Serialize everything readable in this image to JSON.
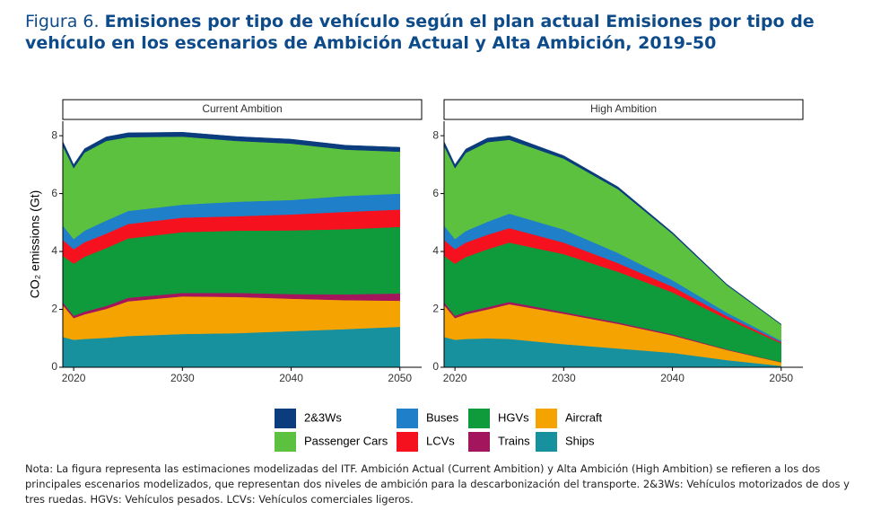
{
  "figure_label": "Figura 6.",
  "title": "Emisiones por tipo de vehículo según el plan actual Emisiones por tipo de vehículo en los escenarios de Ambición Actual y Alta Ambición, 2019-50",
  "note": "Nota: La figura representa las estimaciones modelizadas del ITF. Ambición Actual (Current Ambition) y Alta Ambición (High Ambition) se refieren a los dos principales escenarios modelizados, que representan dos niveles de ambición para la descarbonización del transporte. 2&3Ws: Vehículos motorizados de dos y tres ruedas. HGVs: Vehículos pesados. LCVs: Vehículos comerciales ligeros.",
  "chart_data": [
    {
      "type": "stacked_area",
      "title": "Current Ambition",
      "y_label": "CO₂ emissions (Gt)",
      "x": [
        2019,
        2020,
        2021,
        2023,
        2025,
        2030,
        2035,
        2040,
        2045,
        2050
      ],
      "xlim": [
        2019,
        2052
      ],
      "xticks": [
        2020,
        2030,
        2040,
        2050
      ],
      "ylim": [
        0,
        8.5
      ],
      "yticks": [
        0,
        2,
        4,
        6,
        8
      ],
      "series": [
        {
          "name": "2&3Ws",
          "color": "#0b3c7d",
          "values": [
            0.15,
            0.12,
            0.13,
            0.14,
            0.15,
            0.15,
            0.15,
            0.15,
            0.15,
            0.15
          ]
        },
        {
          "name": "Passenger Cars",
          "color": "#5cc13e",
          "values": [
            2.75,
            2.45,
            2.7,
            2.75,
            2.55,
            2.35,
            2.1,
            1.95,
            1.6,
            1.45
          ]
        },
        {
          "name": "Buses",
          "color": "#1f7fc8",
          "values": [
            0.5,
            0.35,
            0.4,
            0.45,
            0.45,
            0.45,
            0.5,
            0.5,
            0.55,
            0.55
          ]
        },
        {
          "name": "LCVs",
          "color": "#f5111d",
          "values": [
            0.55,
            0.5,
            0.5,
            0.5,
            0.5,
            0.5,
            0.5,
            0.55,
            0.6,
            0.6
          ]
        },
        {
          "name": "HGVs",
          "color": "#0f9a3c",
          "values": [
            1.6,
            1.8,
            1.9,
            2.0,
            2.05,
            2.1,
            2.15,
            2.2,
            2.25,
            2.3
          ]
        },
        {
          "name": "Trains",
          "color": "#a3155d",
          "values": [
            0.1,
            0.08,
            0.09,
            0.1,
            0.12,
            0.12,
            0.14,
            0.16,
            0.2,
            0.25
          ]
        },
        {
          "name": "Aircraft",
          "color": "#f5a300",
          "values": [
            1.1,
            0.75,
            0.85,
            1.0,
            1.2,
            1.3,
            1.25,
            1.12,
            1.0,
            0.9
          ]
        },
        {
          "name": "Ships",
          "color": "#17919e",
          "values": [
            1.05,
            0.95,
            0.98,
            1.02,
            1.08,
            1.15,
            1.18,
            1.25,
            1.32,
            1.4
          ]
        }
      ]
    },
    {
      "type": "stacked_area",
      "title": "High Ambition",
      "x": [
        2019,
        2020,
        2021,
        2023,
        2025,
        2030,
        2035,
        2040,
        2045,
        2050
      ],
      "xlim": [
        2019,
        2052
      ],
      "xticks": [
        2020,
        2030,
        2040,
        2050
      ],
      "ylim": [
        0,
        8.5
      ],
      "yticks": [
        0,
        2,
        4,
        6,
        8
      ],
      "series": [
        {
          "name": "2&3Ws",
          "color": "#0b3c7d",
          "values": [
            0.15,
            0.12,
            0.13,
            0.14,
            0.14,
            0.1,
            0.08,
            0.05,
            0.03,
            0.02
          ]
        },
        {
          "name": "Passenger Cars",
          "color": "#5cc13e",
          "values": [
            2.75,
            2.45,
            2.7,
            2.75,
            2.55,
            2.45,
            2.2,
            1.6,
            0.95,
            0.55
          ]
        },
        {
          "name": "Buses",
          "color": "#1f7fc8",
          "values": [
            0.5,
            0.35,
            0.4,
            0.45,
            0.5,
            0.45,
            0.35,
            0.22,
            0.12,
            0.05
          ]
        },
        {
          "name": "LCVs",
          "color": "#f5111d",
          "values": [
            0.55,
            0.5,
            0.5,
            0.5,
            0.5,
            0.4,
            0.3,
            0.2,
            0.1,
            0.04
          ]
        },
        {
          "name": "HGVs",
          "color": "#0f9a3c",
          "values": [
            1.6,
            1.8,
            1.9,
            2.0,
            2.05,
            2.0,
            1.75,
            1.45,
            1.05,
            0.65
          ]
        },
        {
          "name": "Trains",
          "color": "#a3155d",
          "values": [
            0.1,
            0.08,
            0.08,
            0.08,
            0.08,
            0.06,
            0.05,
            0.04,
            0.02,
            0.01
          ]
        },
        {
          "name": "Aircraft",
          "color": "#f5a300",
          "values": [
            1.1,
            0.75,
            0.85,
            1.0,
            1.2,
            1.05,
            0.85,
            0.6,
            0.35,
            0.12
          ]
        },
        {
          "name": "Ships",
          "color": "#17919e",
          "values": [
            1.05,
            0.95,
            0.98,
            1.0,
            0.98,
            0.8,
            0.65,
            0.5,
            0.25,
            0.05
          ]
        }
      ]
    }
  ]
}
